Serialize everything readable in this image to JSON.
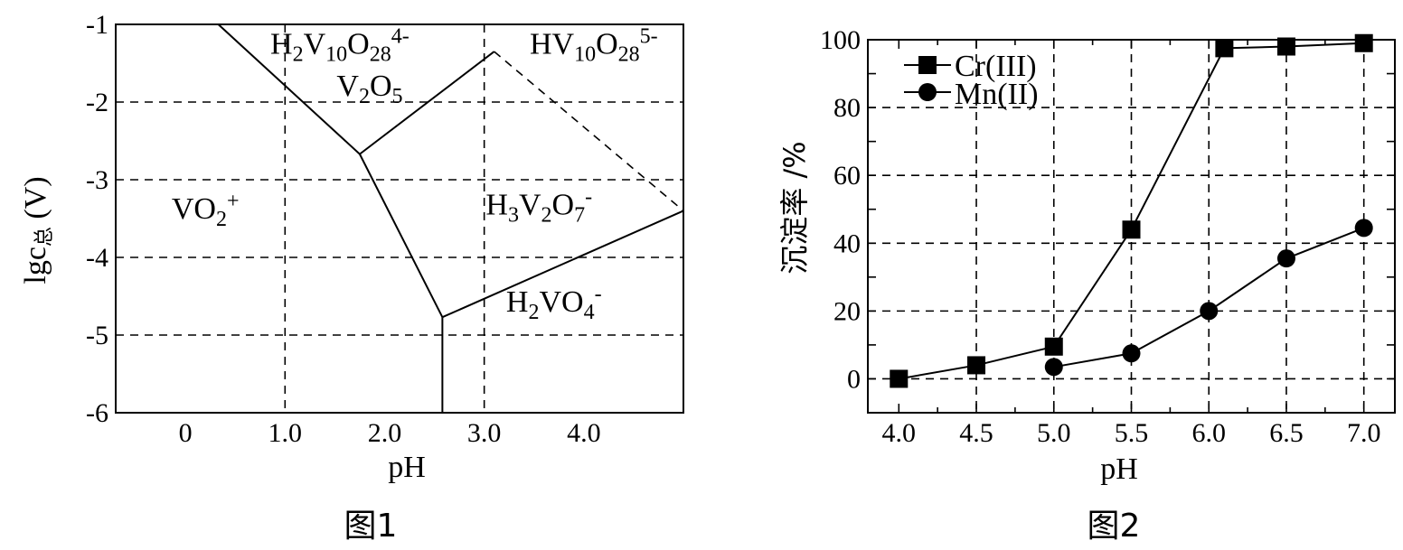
{
  "chart_data": [
    {
      "type": "line",
      "caption": "图1",
      "xlabel": "pH",
      "ylabel_main": "lgc",
      "ylabel_sub": "总",
      "ylabel_tail": " (V)",
      "xlim": [
        -0.7,
        5.0
      ],
      "ylim": [
        -6,
        -1
      ],
      "x_ticks": [
        0,
        1.0,
        2.0,
        3.0,
        4.0
      ],
      "x_tick_labels": [
        "0",
        "1.0",
        "2.0",
        "3.0",
        "4.0"
      ],
      "y_ticks": [
        -1,
        -2,
        -3,
        -4,
        -5,
        -6
      ],
      "y_tick_labels": [
        "-1",
        "-2",
        "-3",
        "-4",
        "-5",
        "-6"
      ],
      "x_grid": [
        1.0,
        3.0
      ],
      "y_grid": [
        -2,
        -3,
        -4,
        -5
      ],
      "boundaries": [
        {
          "name": "boundary-vo2-v2o5",
          "style": "solid",
          "points": [
            [
              0.33,
              -1.0
            ],
            [
              1.75,
              -2.67
            ]
          ]
        },
        {
          "name": "boundary-v2o5-h2v10",
          "style": "solid",
          "points": [
            [
              1.75,
              -2.67
            ],
            [
              3.1,
              -1.35
            ]
          ]
        },
        {
          "name": "boundary-vo2-h3v2o7",
          "style": "solid",
          "points": [
            [
              1.75,
              -2.67
            ],
            [
              2.58,
              -4.77
            ]
          ]
        },
        {
          "name": "boundary-vo2-h2vo4",
          "style": "solid",
          "points": [
            [
              2.58,
              -4.77
            ],
            [
              2.58,
              -6.0
            ]
          ]
        },
        {
          "name": "boundary-h3v2o7-h2vo4",
          "style": "solid",
          "points": [
            [
              2.58,
              -4.77
            ],
            [
              5.0,
              -3.4
            ]
          ]
        },
        {
          "name": "boundary-hv10-h3v2o7",
          "style": "dashed",
          "points": [
            [
              3.1,
              -1.35
            ],
            [
              5.0,
              -3.4
            ]
          ]
        }
      ],
      "regions": [
        {
          "name": "region-h2v10o28",
          "base": "H",
          "parts": [
            [
              "H",
              ""
            ],
            [
              "2",
              "sub"
            ],
            [
              "V",
              ""
            ],
            [
              "10",
              "sub"
            ],
            [
              "O",
              ""
            ],
            [
              "28",
              "sub"
            ],
            [
              "4-",
              "sup"
            ]
          ],
          "x": 1.55,
          "y": -1.38
        },
        {
          "name": "region-v2o5",
          "parts": [
            [
              "V",
              ""
            ],
            [
              "2",
              "sub"
            ],
            [
              "O",
              ""
            ],
            [
              "5",
              "sub"
            ]
          ],
          "x": 1.85,
          "y": -1.92
        },
        {
          "name": "region-hv10o28",
          "parts": [
            [
              "HV",
              ""
            ],
            [
              "10",
              "sub"
            ],
            [
              "O",
              ""
            ],
            [
              "28",
              "sub"
            ],
            [
              "5-",
              "sup"
            ]
          ],
          "x": 4.1,
          "y": -1.38
        },
        {
          "name": "region-vo2",
          "parts": [
            [
              "VO",
              ""
            ],
            [
              "2",
              "sub"
            ],
            [
              "+",
              "sup"
            ]
          ],
          "x": 0.2,
          "y": -3.5
        },
        {
          "name": "region-h3v2o7",
          "parts": [
            [
              "H",
              ""
            ],
            [
              "3",
              "sub"
            ],
            [
              "V",
              ""
            ],
            [
              "2",
              "sub"
            ],
            [
              "O",
              ""
            ],
            [
              "7",
              "sub"
            ],
            [
              "-",
              "sup"
            ]
          ],
          "x": 3.55,
          "y": -3.45
        },
        {
          "name": "region-h2vo4",
          "parts": [
            [
              "H",
              ""
            ],
            [
              "2",
              "sub"
            ],
            [
              "VO",
              ""
            ],
            [
              "4",
              "sub"
            ],
            [
              "-",
              "sup"
            ]
          ],
          "x": 3.7,
          "y": -4.7
        }
      ]
    },
    {
      "type": "line",
      "caption": "图2",
      "xlabel": "pH",
      "ylabel": "沉淀率 /%",
      "xlim": [
        3.8,
        7.2
      ],
      "ylim": [
        -10,
        100
      ],
      "x_ticks": [
        4.0,
        4.5,
        5.0,
        5.5,
        6.0,
        6.5,
        7.0
      ],
      "x_tick_labels": [
        "4.0",
        "4.5",
        "5.0",
        "5.5",
        "6.0",
        "6.5",
        "7.0"
      ],
      "y_ticks": [
        0,
        20,
        40,
        60,
        80,
        100
      ],
      "y_tick_labels": [
        "0",
        "20",
        "40",
        "60",
        "80",
        "100"
      ],
      "x_grid": [
        4.5,
        5.0,
        5.5,
        6.0,
        6.5,
        7.0
      ],
      "y_grid": [
        0,
        20,
        40,
        60,
        80
      ],
      "legend_position": "top-left",
      "series": [
        {
          "name": "Cr(III)",
          "marker": "square",
          "x": [
            4.0,
            4.5,
            5.0,
            5.5,
            6.1,
            6.5,
            7.0
          ],
          "y": [
            0,
            4,
            9.5,
            44,
            97.5,
            98,
            99
          ]
        },
        {
          "name": "Mn(II)",
          "marker": "circle",
          "x": [
            5.0,
            5.5,
            6.0,
            6.5,
            7.0
          ],
          "y": [
            3.5,
            7.5,
            20,
            35.5,
            44.5
          ]
        }
      ]
    }
  ]
}
